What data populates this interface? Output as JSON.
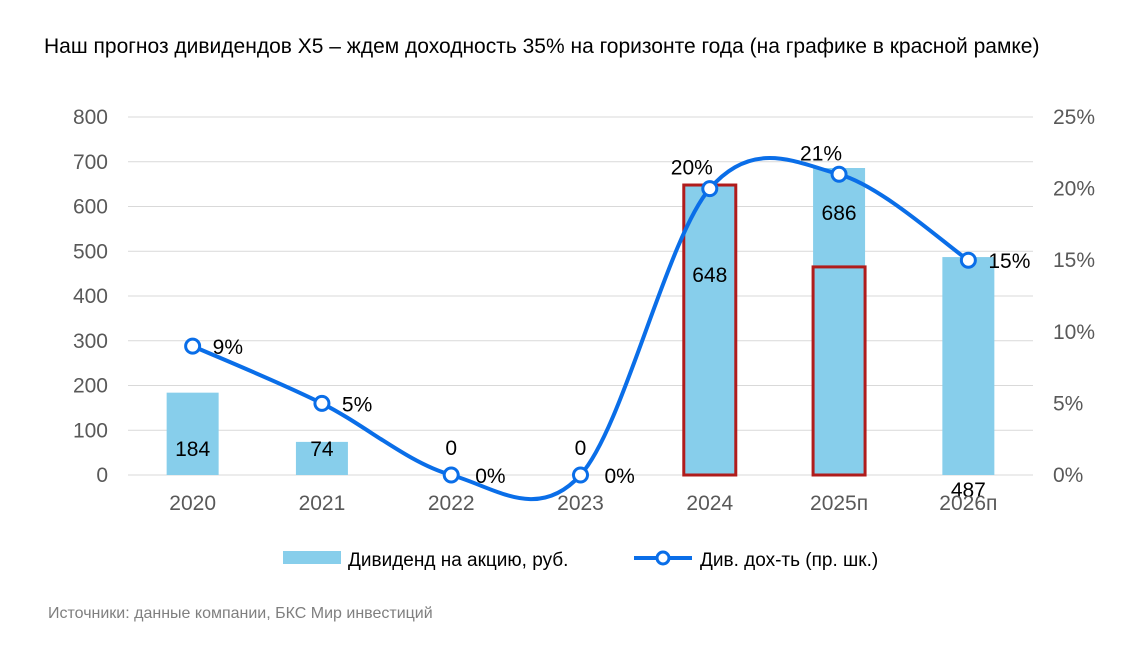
{
  "title": "Наш прогноз дивидендов X5 – ждем доходность 35% на горизонте года (на графике в красной рамке)",
  "source": "Источники: данные компании, БКС Мир инвестиций",
  "colors": {
    "bar": "#87CEEB",
    "line": "#0A6EE8",
    "highlight": "#B01C1C",
    "grid": "#D9D9D9",
    "axis_text": "#595959"
  },
  "chart_data": {
    "type": "bar",
    "categories": [
      "2020",
      "2021",
      "2022",
      "2023",
      "2024",
      "2025п",
      "2026п"
    ],
    "series": [
      {
        "name": "Дивиденд на акцию, руб.",
        "type": "bar",
        "axis": "left",
        "values": [
          184,
          74,
          0,
          0,
          648,
          686,
          487
        ],
        "labels": [
          "184",
          "74",
          "0",
          "0",
          "648",
          "686",
          "487"
        ]
      },
      {
        "name": "Див. дох-ть (пр. шк.)",
        "type": "line",
        "axis": "right",
        "values": [
          9,
          5,
          0,
          0,
          20,
          21,
          15
        ],
        "labels": [
          "9%",
          "5%",
          "0%",
          "0%",
          "20%",
          "21%",
          "15%"
        ]
      }
    ],
    "y_left": {
      "ylim": [
        0,
        800
      ],
      "ticks": [
        "0",
        "100",
        "200",
        "300",
        "400",
        "500",
        "600",
        "700",
        "800"
      ]
    },
    "y_right": {
      "ylim": [
        0,
        25
      ],
      "ticks": [
        "0%",
        "5%",
        "10%",
        "15%",
        "20%",
        "25%"
      ]
    },
    "highlights": [
      {
        "category": "2024",
        "from": 0,
        "to": 648
      },
      {
        "category": "2025п",
        "from": 0,
        "to": 465
      }
    ],
    "grid": true,
    "legend_position": "bottom"
  }
}
